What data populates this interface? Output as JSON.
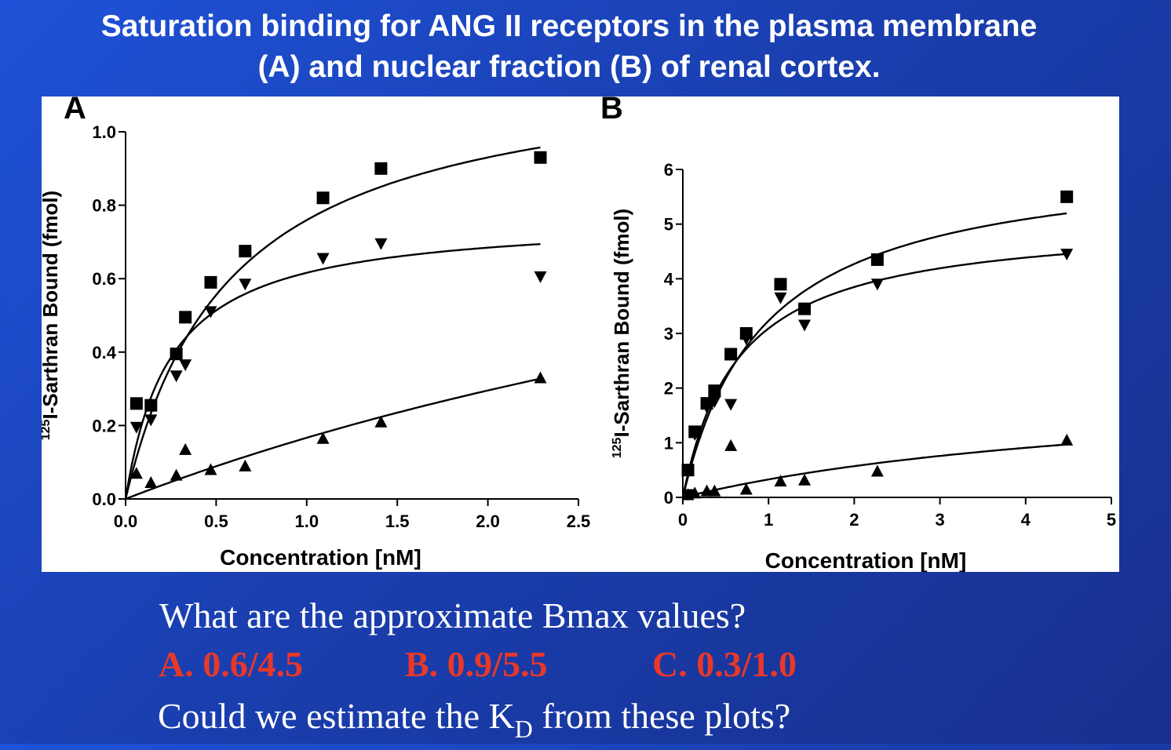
{
  "slide": {
    "title_line1": "Saturation binding for ANG II receptors in the plasma membrane",
    "title_line2": "(A) and nuclear fraction (B) of renal cortex.",
    "question1": "What are the approximate Bmax values?",
    "options": [
      {
        "label": "A. 0.6/4.5"
      },
      {
        "label": "B. 0.9/5.5"
      },
      {
        "label": "C. 0.3/1.0"
      }
    ],
    "question2_pre": "Could we estimate the K",
    "question2_sub": "D",
    "question2_post": " from these plots?",
    "colors": {
      "background": "#1a3fb0",
      "title": "#ffffff",
      "option": "#e8382a"
    }
  },
  "chart_data": [
    {
      "type": "scatter",
      "panel_label": "A",
      "xlabel": "Concentration [nM]",
      "ylabel_sup": "125",
      "ylabel": "I-Sarthran Bound (fmol)",
      "xlim": [
        0,
        2.5
      ],
      "ylim": [
        0,
        1.0
      ],
      "x_ticks": [
        0,
        0.5,
        1.0,
        1.5,
        2.0,
        2.5
      ],
      "x_tick_labels": [
        "0.0",
        "0.5",
        "1.0",
        "1.5",
        "2.0",
        "2.5"
      ],
      "y_ticks": [
        0,
        0.2,
        0.4,
        0.6,
        0.8,
        1.0
      ],
      "y_tick_labels": [
        "0.0",
        "0.2",
        "0.4",
        "0.6",
        "0.8",
        "1.0"
      ],
      "grid": false,
      "series": [
        {
          "marker": "square",
          "points": [
            [
              0.06,
              0.26
            ],
            [
              0.14,
              0.255
            ],
            [
              0.28,
              0.395
            ],
            [
              0.33,
              0.495
            ],
            [
              0.47,
              0.59
            ],
            [
              0.66,
              0.675
            ],
            [
              1.09,
              0.82
            ],
            [
              1.41,
              0.9
            ],
            [
              2.29,
              0.93
            ]
          ],
          "fit": {
            "bmax": 1.2,
            "kd": 0.58
          }
        },
        {
          "marker": "triangle-down",
          "points": [
            [
              0.06,
              0.195
            ],
            [
              0.14,
              0.215
            ],
            [
              0.28,
              0.335
            ],
            [
              0.33,
              0.365
            ],
            [
              0.47,
              0.51
            ],
            [
              0.66,
              0.585
            ],
            [
              1.09,
              0.655
            ],
            [
              1.41,
              0.695
            ],
            [
              2.29,
              0.605
            ]
          ],
          "fit": {
            "bmax": 0.77,
            "kd": 0.25
          }
        },
        {
          "marker": "triangle-up",
          "points": [
            [
              0.06,
              0.07
            ],
            [
              0.14,
              0.045
            ],
            [
              0.28,
              0.065
            ],
            [
              0.33,
              0.135
            ],
            [
              0.47,
              0.08
            ],
            [
              0.66,
              0.09
            ],
            [
              1.09,
              0.165
            ],
            [
              1.41,
              0.21
            ],
            [
              2.29,
              0.33
            ]
          ],
          "fit": {
            "bmax": 1.3,
            "kd": 6.8
          }
        }
      ]
    },
    {
      "type": "scatter",
      "panel_label": "B",
      "xlabel": "Concentration [nM]",
      "ylabel_sup": "125",
      "ylabel": "I-Sarthran Bound (fmol)",
      "xlim": [
        0,
        5
      ],
      "ylim": [
        0,
        6
      ],
      "x_ticks": [
        0,
        1,
        2,
        3,
        4,
        5
      ],
      "x_tick_labels": [
        "0",
        "1",
        "2",
        "3",
        "4",
        "5"
      ],
      "y_ticks": [
        0,
        1,
        2,
        3,
        4,
        5,
        6
      ],
      "y_tick_labels": [
        "0",
        "1",
        "2",
        "3",
        "4",
        "5",
        "6"
      ],
      "grid": false,
      "series": [
        {
          "marker": "square",
          "points": [
            [
              0.06,
              0.5
            ],
            [
              0.14,
              1.2
            ],
            [
              0.28,
              1.72
            ],
            [
              0.37,
              1.95
            ],
            [
              0.56,
              2.62
            ],
            [
              0.74,
              3.0
            ],
            [
              1.14,
              3.9
            ],
            [
              1.42,
              3.45
            ],
            [
              2.27,
              4.35
            ],
            [
              4.48,
              5.5
            ]
          ],
          "fit": {
            "bmax": 6.3,
            "kd": 0.95
          }
        },
        {
          "marker": "triangle-down",
          "points": [
            [
              0.06,
              0.05
            ],
            [
              0.14,
              1.15
            ],
            [
              0.28,
              1.65
            ],
            [
              0.37,
              1.75
            ],
            [
              0.56,
              1.7
            ],
            [
              0.74,
              2.9
            ],
            [
              1.14,
              3.65
            ],
            [
              1.42,
              3.15
            ],
            [
              2.27,
              3.9
            ],
            [
              4.48,
              4.45
            ]
          ],
          "fit": {
            "bmax": 5.1,
            "kd": 0.65
          }
        },
        {
          "marker": "triangle-up",
          "points": [
            [
              0.06,
              0.05
            ],
            [
              0.14,
              0.08
            ],
            [
              0.28,
              0.12
            ],
            [
              0.37,
              0.12
            ],
            [
              0.56,
              0.95
            ],
            [
              0.74,
              0.15
            ],
            [
              1.14,
              0.3
            ],
            [
              1.42,
              0.32
            ],
            [
              2.27,
              0.48
            ],
            [
              4.48,
              1.05
            ]
          ],
          "fit": {
            "bmax": 2.2,
            "kd": 5.7
          }
        }
      ]
    }
  ]
}
